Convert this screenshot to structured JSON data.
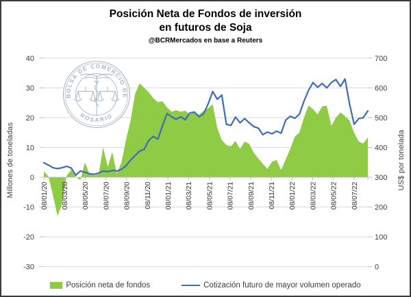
{
  "title": {
    "line1": "Posición Neta de Fondos de inversión",
    "line2": "en futuros de Soja",
    "subtitle": "@BCRMercados  en base a Reuters"
  },
  "watermark": {
    "arc_top": "BOLSA DE COMERCIO DE",
    "arc_bottom": "ROSARIO"
  },
  "axes": {
    "left": {
      "title": "Millones de toneladas",
      "ticks": [
        "40",
        "30",
        "20",
        "10",
        "0",
        "-10",
        "-20",
        "-30"
      ]
    },
    "right": {
      "title": "US$ por tonelada",
      "ticks": [
        "700",
        "600",
        "500",
        "400",
        "300",
        "200",
        "100",
        "0"
      ]
    },
    "x": {
      "tick_labels": [
        "08/01/20",
        "08/03/20",
        "08/05/20",
        "08/07/20",
        "08/09/20",
        "08/11/20",
        "08/01/21",
        "08/03/21",
        "08/05/21",
        "08/07/21",
        "08/09/21",
        "08/11/21",
        "08/01/22",
        "08/03/22",
        "08/05/22",
        "08/07/22"
      ]
    }
  },
  "legend": {
    "items": [
      {
        "label": "Posición neta de fondos",
        "marker": "area-swatch",
        "color": "#8FCB45"
      },
      {
        "label": "Cotización futuro de mayor volumen operado",
        "marker": "line",
        "color": "#3E6DBA"
      }
    ]
  },
  "chart_data": {
    "type": "combo",
    "title": "Posición Neta de Fondos de inversión en futuros de Soja",
    "source_note": "@BCRMercados  en base a Reuters",
    "x_tick_labels": [
      "08/01/20",
      "08/03/20",
      "08/05/20",
      "08/07/20",
      "08/09/20",
      "08/11/20",
      "08/01/21",
      "08/03/21",
      "08/05/21",
      "08/07/21",
      "08/09/21",
      "08/11/21",
      "08/01/22",
      "08/03/22",
      "08/05/22",
      "08/07/22"
    ],
    "left_axis": {
      "label": "Millones de toneladas",
      "range": [
        -30,
        40
      ],
      "tick_step": 10
    },
    "right_axis": {
      "label": "US$ por tonelada",
      "range": [
        0,
        700
      ],
      "tick_step": 100
    },
    "grid": "horizontal",
    "legend_position": "bottom",
    "series": [
      {
        "name": "Posición neta de fondos",
        "type": "area",
        "y_axis": "left",
        "unit": "millones de toneladas",
        "color": "#8FCB45",
        "values": [
          2,
          0.3,
          -6,
          -13,
          -9,
          0.5,
          2.5,
          0.2,
          -1,
          5,
          1,
          0.6,
          1,
          10,
          3.5,
          8.5,
          1.2,
          5,
          12.5,
          19,
          28,
          31.5,
          30,
          28.5,
          26.5,
          25.2,
          25.5,
          23.4,
          22,
          22.5,
          22,
          22.3,
          21.1,
          21.8,
          21,
          22.3,
          23.2,
          24.5,
          16.5,
          12.5,
          10.8,
          10.4,
          12.2,
          9.5,
          12,
          11.2,
          8.2,
          6.3,
          4.5,
          2.8,
          5.2,
          5.8,
          2.4,
          6,
          9.5,
          13.6,
          15,
          20,
          24.1,
          22.8,
          21.1,
          23.8,
          24,
          17.3,
          20,
          21.8,
          20.5,
          19,
          14.9,
          12,
          11.3,
          13.4
        ]
      },
      {
        "name": "Cotización futuro de mayor volumen operado",
        "type": "line",
        "y_axis": "right",
        "unit": "US$ por tonelada",
        "color": "#3E6DBA",
        "values": [
          349,
          341,
          332,
          329,
          332,
          337,
          331,
          307,
          321,
          317,
          312,
          310,
          314,
          321,
          319,
          323,
          321,
          327,
          338,
          358,
          373,
          388,
          394,
          424,
          437,
          428,
          473,
          514,
          503,
          495,
          503,
          493,
          516,
          519,
          503,
          513,
          546,
          588,
          562,
          576,
          478,
          474,
          502,
          483,
          497,
          483,
          470,
          465,
          443,
          452,
          446,
          455,
          448,
          492,
          505,
          498,
          512,
          555,
          592,
          618,
          602,
          615,
          600,
          618,
          628,
          605,
          630,
          545,
          478,
          497,
          500,
          523
        ]
      }
    ]
  }
}
